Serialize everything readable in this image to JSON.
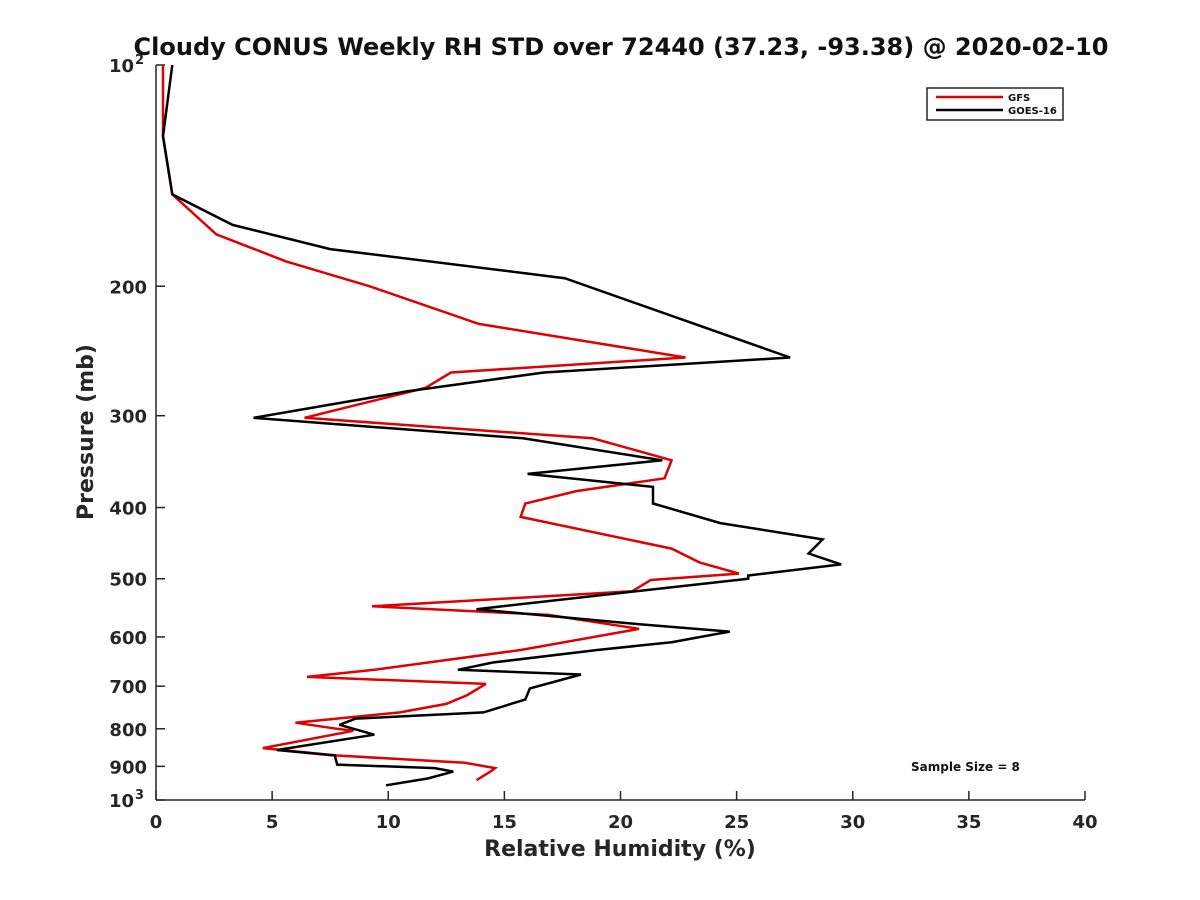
{
  "chart_data": {
    "type": "line",
    "title": "Cloudy CONUS Weekly RH STD over 72440 (37.23, -93.38) @ 2020-02-10",
    "xlabel": "Relative Humidity (%)",
    "ylabel": "Pressure (mb)",
    "xlim": [
      0,
      40
    ],
    "ylim": [
      100,
      1000
    ],
    "y_scale": "log",
    "y_reversed": true,
    "grid": false,
    "legend_position": "top-right",
    "x_ticks": [
      0,
      5,
      10,
      15,
      20,
      25,
      30,
      35,
      40
    ],
    "y_ticks": [
      {
        "value": 100,
        "base": "10",
        "exp": "2"
      },
      {
        "value": 200,
        "label": "200"
      },
      {
        "value": 300,
        "label": "300"
      },
      {
        "value": 400,
        "label": "400"
      },
      {
        "value": 500,
        "label": "500"
      },
      {
        "value": 600,
        "label": "600"
      },
      {
        "value": 700,
        "label": "700"
      },
      {
        "value": 800,
        "label": "800"
      },
      {
        "value": 900,
        "label": "900"
      },
      {
        "value": 1000,
        "base": "10",
        "exp": "3"
      }
    ],
    "series": [
      {
        "name": "GFS",
        "color": "#e00000",
        "points": [
          [
            0.3,
            100
          ],
          [
            0.3,
            125
          ],
          [
            0.7,
            150
          ],
          [
            2.6,
            170
          ],
          [
            5.6,
            185
          ],
          [
            9.2,
            200
          ],
          [
            13.9,
            225
          ],
          [
            22.8,
            250
          ],
          [
            12.7,
            262
          ],
          [
            11.6,
            275
          ],
          [
            6.4,
            302
          ],
          [
            18.8,
            322
          ],
          [
            22.2,
            345
          ],
          [
            21.9,
            365
          ],
          [
            18.1,
            380
          ],
          [
            15.9,
            395
          ],
          [
            15.7,
            412
          ],
          [
            22.2,
            455
          ],
          [
            23.4,
            475
          ],
          [
            25.1,
            492
          ],
          [
            21.3,
            502
          ],
          [
            20.5,
            520
          ],
          [
            9.3,
            545
          ],
          [
            16.9,
            560
          ],
          [
            20.8,
            585
          ],
          [
            15.7,
            625
          ],
          [
            9.4,
            665
          ],
          [
            6.5,
            680
          ],
          [
            14.2,
            695
          ],
          [
            13.4,
            720
          ],
          [
            12.5,
            740
          ],
          [
            10.5,
            760
          ],
          [
            6.0,
            785
          ],
          [
            7.8,
            800
          ],
          [
            8.5,
            805
          ],
          [
            4.6,
            850
          ],
          [
            7.8,
            870
          ],
          [
            13.3,
            890
          ],
          [
            14.6,
            905
          ],
          [
            14.4,
            915
          ],
          [
            13.8,
            940
          ]
        ]
      },
      {
        "name": "GOES-16",
        "color": "#000000",
        "points": [
          [
            0.7,
            100
          ],
          [
            0.3,
            125
          ],
          [
            0.7,
            150
          ],
          [
            3.3,
            165
          ],
          [
            7.5,
            178
          ],
          [
            17.6,
            195
          ],
          [
            27.3,
            250
          ],
          [
            16.7,
            262
          ],
          [
            10.8,
            278
          ],
          [
            4.2,
            302
          ],
          [
            15.8,
            322
          ],
          [
            21.8,
            345
          ],
          [
            16.0,
            360
          ],
          [
            21.4,
            375
          ],
          [
            21.4,
            395
          ],
          [
            24.3,
            420
          ],
          [
            28.7,
            442
          ],
          [
            28.1,
            462
          ],
          [
            29.5,
            478
          ],
          [
            25.5,
            495
          ],
          [
            25.5,
            500
          ],
          [
            13.8,
            550
          ],
          [
            20.4,
            575
          ],
          [
            24.7,
            590
          ],
          [
            22.2,
            610
          ],
          [
            19.0,
            625
          ],
          [
            14.5,
            650
          ],
          [
            13.0,
            665
          ],
          [
            18.3,
            675
          ],
          [
            16.1,
            705
          ],
          [
            15.9,
            730
          ],
          [
            14.1,
            760
          ],
          [
            8.6,
            775
          ],
          [
            7.9,
            790
          ],
          [
            9.4,
            815
          ],
          [
            5.2,
            855
          ],
          [
            7.7,
            870
          ],
          [
            7.8,
            895
          ],
          [
            12.0,
            905
          ],
          [
            12.8,
            915
          ],
          [
            11.7,
            935
          ],
          [
            9.9,
            955
          ]
        ]
      }
    ],
    "annotations": [
      {
        "text": "Sample Size = 8"
      }
    ]
  }
}
